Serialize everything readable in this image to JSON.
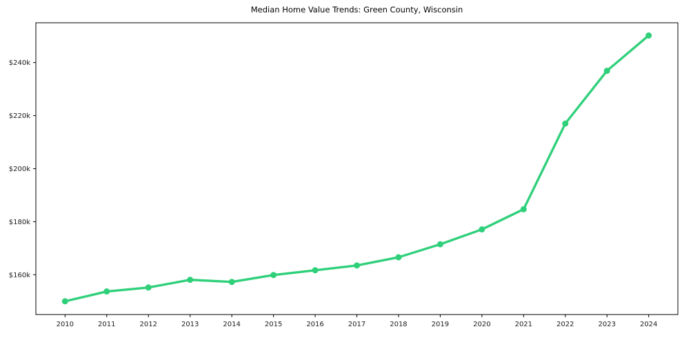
{
  "chart_data": {
    "type": "line",
    "title": "Median Home Value Trends: Green County, Wisconsin",
    "x": [
      2010,
      2011,
      2012,
      2013,
      2014,
      2015,
      2016,
      2017,
      2018,
      2019,
      2020,
      2021,
      2022,
      2023,
      2024
    ],
    "x_tick_labels": [
      "2010",
      "2011",
      "2012",
      "2013",
      "2014",
      "2015",
      "2016",
      "2017",
      "2018",
      "2019",
      "2020",
      "2021",
      "2022",
      "2023",
      "2024"
    ],
    "series": [
      {
        "values": [
          150000,
          153700,
          155200,
          158100,
          157300,
          159900,
          161700,
          163500,
          166600,
          171500,
          177100,
          184700,
          217000,
          236900,
          250200
        ]
      }
    ],
    "y_ticks": [
      {
        "value": 160000,
        "label": "$160k"
      },
      {
        "value": 180000,
        "label": "$180k"
      },
      {
        "value": 200000,
        "label": "$200k"
      },
      {
        "value": 220000,
        "label": "$220k"
      },
      {
        "value": 240000,
        "label": "$240k"
      }
    ],
    "xlim": [
      2009.3,
      2024.7
    ],
    "ylim": [
      145000,
      255000
    ],
    "grid": false,
    "legend": "none",
    "line_color": "#30d07b",
    "marker": "circle",
    "axis_color": "#000000",
    "tick_label_color": "#1a1a1a",
    "background_color": "#ffffff"
  }
}
